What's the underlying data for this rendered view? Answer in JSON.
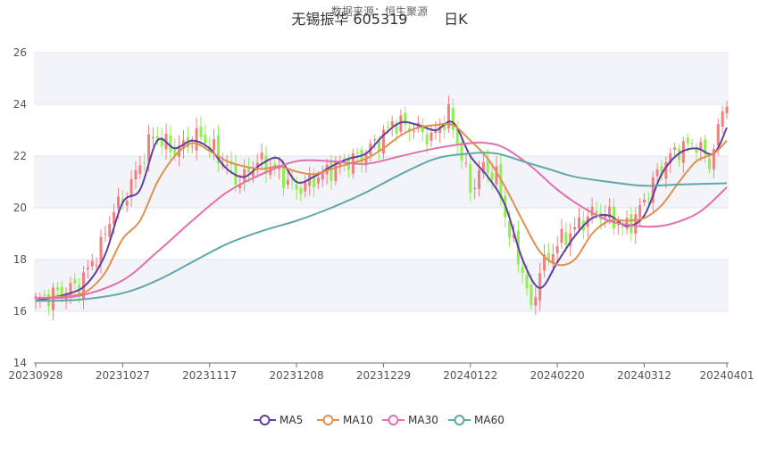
{
  "chart_data": {
    "type": "candlestick",
    "title": "无锡振华 605319        日K",
    "subtitle": "数据来源：恒生聚源",
    "ylim": [
      14,
      26
    ],
    "y_ticks": [
      14,
      16,
      18,
      20,
      22,
      24,
      26
    ],
    "x_ticks": [
      "20230928",
      "20231027",
      "20231117",
      "20231208",
      "20231229",
      "20240122",
      "20240220",
      "20240312",
      "20240401"
    ],
    "x_tick_index": [
      0,
      20,
      40,
      60,
      80,
      100,
      120,
      140,
      159
    ],
    "colors": {
      "up": "#f08080",
      "down": "#90ee50",
      "MA5": "#6040a0",
      "MA10": "#e09050",
      "MA30": "#e070b0",
      "MA60": "#60a8a8",
      "band": "#f3f4fa",
      "grid": "#e0e6f1",
      "axis": "#6e7079"
    },
    "legend": [
      "MA5",
      "MA10",
      "MA30",
      "MA60"
    ],
    "legend_position": "bottom",
    "candle_keys": [
      {
        "i": 0,
        "c": 16.4
      },
      {
        "i": 10,
        "c": 17.0
      },
      {
        "i": 15,
        "c": 18.5
      },
      {
        "i": 18,
        "c": 20.0
      },
      {
        "i": 20,
        "c": 20.2
      },
      {
        "i": 27,
        "c": 22.8
      },
      {
        "i": 32,
        "c": 22.2
      },
      {
        "i": 38,
        "c": 22.8
      },
      {
        "i": 42,
        "c": 22.0
      },
      {
        "i": 47,
        "c": 21.0
      },
      {
        "i": 51,
        "c": 21.8
      },
      {
        "i": 55,
        "c": 21.5
      },
      {
        "i": 60,
        "c": 20.7
      },
      {
        "i": 65,
        "c": 21.2
      },
      {
        "i": 70,
        "c": 21.7
      },
      {
        "i": 75,
        "c": 22.0
      },
      {
        "i": 80,
        "c": 22.8
      },
      {
        "i": 82,
        "c": 23.3
      },
      {
        "i": 87,
        "c": 23.1
      },
      {
        "i": 91,
        "c": 22.7
      },
      {
        "i": 95,
        "c": 23.6
      },
      {
        "i": 98,
        "c": 22.0
      },
      {
        "i": 100,
        "c": 20.7
      },
      {
        "i": 103,
        "c": 21.6
      },
      {
        "i": 106,
        "c": 21.2
      },
      {
        "i": 109,
        "c": 19.0
      },
      {
        "i": 112,
        "c": 17.6
      },
      {
        "i": 114,
        "c": 16.0
      },
      {
        "i": 116,
        "c": 17.6
      },
      {
        "i": 120,
        "c": 18.6
      },
      {
        "i": 124,
        "c": 19.2
      },
      {
        "i": 128,
        "c": 19.8
      },
      {
        "i": 132,
        "c": 19.7
      },
      {
        "i": 135,
        "c": 19.2
      },
      {
        "i": 138,
        "c": 19.6
      },
      {
        "i": 142,
        "c": 21.0
      },
      {
        "i": 145,
        "c": 21.8
      },
      {
        "i": 148,
        "c": 22.3
      },
      {
        "i": 152,
        "c": 22.5
      },
      {
        "i": 155,
        "c": 21.7
      },
      {
        "i": 159,
        "c": 24.3
      }
    ],
    "ma": {
      "MA5": [
        [
          0,
          16.4
        ],
        [
          8,
          16.7
        ],
        [
          12,
          17.1
        ],
        [
          16,
          18.2
        ],
        [
          20,
          20.2
        ],
        [
          24,
          20.7
        ],
        [
          28,
          22.6
        ],
        [
          32,
          22.3
        ],
        [
          36,
          22.6
        ],
        [
          40,
          22.3
        ],
        [
          44,
          21.5
        ],
        [
          48,
          21.2
        ],
        [
          52,
          21.7
        ],
        [
          56,
          21.9
        ],
        [
          60,
          21.0
        ],
        [
          64,
          21.2
        ],
        [
          68,
          21.6
        ],
        [
          72,
          21.9
        ],
        [
          76,
          22.1
        ],
        [
          80,
          22.8
        ],
        [
          84,
          23.3
        ],
        [
          88,
          23.2
        ],
        [
          92,
          23.0
        ],
        [
          96,
          23.3
        ],
        [
          100,
          22.0
        ],
        [
          104,
          21.2
        ],
        [
          108,
          20.1
        ],
        [
          112,
          18.0
        ],
        [
          116,
          16.9
        ],
        [
          120,
          17.9
        ],
        [
          124,
          18.9
        ],
        [
          128,
          19.6
        ],
        [
          132,
          19.7
        ],
        [
          136,
          19.3
        ],
        [
          140,
          19.7
        ],
        [
          144,
          21.3
        ],
        [
          148,
          22.1
        ],
        [
          152,
          22.3
        ],
        [
          156,
          22.1
        ],
        [
          159,
          23.1
        ]
      ],
      "MA10": [
        [
          0,
          16.5
        ],
        [
          8,
          16.6
        ],
        [
          12,
          16.8
        ],
        [
          16,
          17.5
        ],
        [
          20,
          18.8
        ],
        [
          24,
          19.5
        ],
        [
          28,
          21.0
        ],
        [
          32,
          22.0
        ],
        [
          36,
          22.5
        ],
        [
          40,
          22.2
        ],
        [
          44,
          21.8
        ],
        [
          48,
          21.6
        ],
        [
          52,
          21.5
        ],
        [
          56,
          21.6
        ],
        [
          60,
          21.4
        ],
        [
          64,
          21.3
        ],
        [
          68,
          21.5
        ],
        [
          72,
          21.7
        ],
        [
          76,
          21.9
        ],
        [
          80,
          22.3
        ],
        [
          84,
          22.8
        ],
        [
          88,
          23.1
        ],
        [
          92,
          23.2
        ],
        [
          96,
          23.2
        ],
        [
          100,
          22.6
        ],
        [
          104,
          21.9
        ],
        [
          108,
          20.8
        ],
        [
          112,
          19.5
        ],
        [
          116,
          18.3
        ],
        [
          120,
          17.8
        ],
        [
          124,
          18.0
        ],
        [
          128,
          19.0
        ],
        [
          132,
          19.5
        ],
        [
          136,
          19.5
        ],
        [
          140,
          19.6
        ],
        [
          144,
          20.1
        ],
        [
          148,
          21.0
        ],
        [
          152,
          21.8
        ],
        [
          156,
          22.1
        ],
        [
          159,
          22.6
        ]
      ],
      "MA30": [
        [
          0,
          16.5
        ],
        [
          10,
          16.6
        ],
        [
          20,
          17.2
        ],
        [
          28,
          18.3
        ],
        [
          36,
          19.5
        ],
        [
          44,
          20.6
        ],
        [
          52,
          21.3
        ],
        [
          60,
          21.8
        ],
        [
          68,
          21.8
        ],
        [
          76,
          21.7
        ],
        [
          84,
          22.0
        ],
        [
          92,
          22.3
        ],
        [
          100,
          22.5
        ],
        [
          104,
          22.5
        ],
        [
          108,
          22.3
        ],
        [
          114,
          21.6
        ],
        [
          120,
          20.7
        ],
        [
          126,
          20.0
        ],
        [
          132,
          19.5
        ],
        [
          138,
          19.3
        ],
        [
          144,
          19.3
        ],
        [
          150,
          19.6
        ],
        [
          154,
          20.0
        ],
        [
          159,
          20.8
        ]
      ],
      "MA60": [
        [
          0,
          16.4
        ],
        [
          10,
          16.45
        ],
        [
          20,
          16.7
        ],
        [
          28,
          17.2
        ],
        [
          36,
          17.9
        ],
        [
          44,
          18.6
        ],
        [
          52,
          19.1
        ],
        [
          60,
          19.5
        ],
        [
          68,
          20.0
        ],
        [
          76,
          20.6
        ],
        [
          84,
          21.3
        ],
        [
          92,
          21.9
        ],
        [
          100,
          22.1
        ],
        [
          106,
          22.1
        ],
        [
          112,
          21.8
        ],
        [
          118,
          21.5
        ],
        [
          124,
          21.2
        ],
        [
          132,
          21.0
        ],
        [
          140,
          20.85
        ],
        [
          148,
          20.9
        ],
        [
          159,
          20.95
        ]
      ]
    }
  }
}
